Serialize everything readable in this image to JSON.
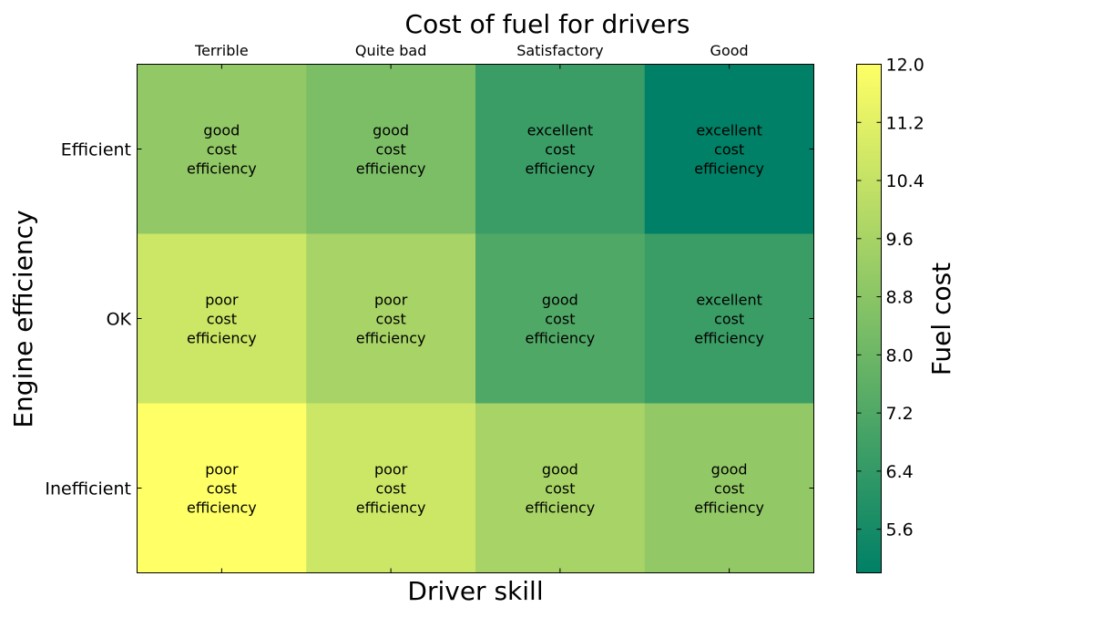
{
  "chart_data": {
    "type": "heatmap",
    "title": "Cost of fuel for drivers",
    "xlabel": "Driver skill",
    "ylabel": "Engine efficiency",
    "x_categories": [
      "Terrible",
      "Quite bad",
      "Satisfactory",
      "Good"
    ],
    "y_categories": [
      "Efficient",
      "OK",
      "Inefficient"
    ],
    "values": [
      [
        9.0,
        8.4,
        6.6,
        5.0
      ],
      [
        10.6,
        9.6,
        7.2,
        6.6
      ],
      [
        12.0,
        10.6,
        9.6,
        9.0
      ]
    ],
    "cell_labels": [
      [
        "good\ncost\nefficiency",
        "good\ncost\nefficiency",
        "excellent\ncost\nefficiency",
        "excellent\ncost\nefficiency"
      ],
      [
        "poor\ncost\nefficiency",
        "poor\ncost\nefficiency",
        "good\ncost\nefficiency",
        "excellent\ncost\nefficiency"
      ],
      [
        "poor\ncost\nefficiency",
        "poor\ncost\nefficiency",
        "good\ncost\nefficiency",
        "good\ncost\nefficiency"
      ]
    ],
    "colorbar": {
      "label": "Fuel cost",
      "range": [
        5.0,
        12.0
      ],
      "ticks": [
        "5.6",
        "6.4",
        "7.2",
        "8.0",
        "8.8",
        "9.6",
        "10.4",
        "11.2",
        "12.0"
      ],
      "colormap": "summer",
      "color_low": "#008066",
      "color_high": "#FFFF66"
    },
    "grid": false,
    "x_tick_position": "top"
  }
}
